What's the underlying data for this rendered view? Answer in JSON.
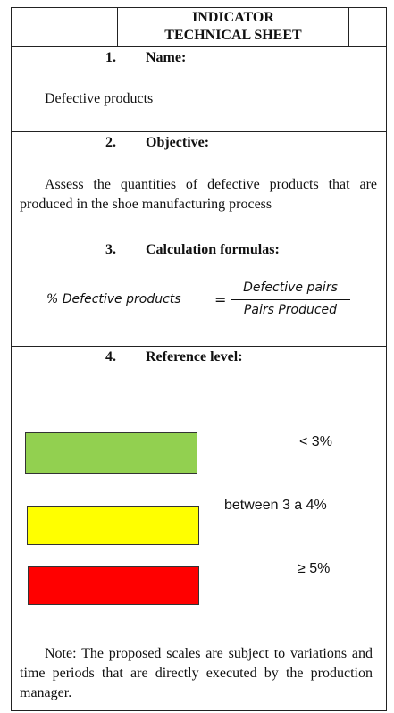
{
  "header": {
    "title": [
      "INDICATOR",
      "TECHNICAL SHEET"
    ]
  },
  "sections": [
    {
      "number": "1.",
      "heading": "Name:",
      "body": "Defective products"
    },
    {
      "number": "2.",
      "heading": "Objective:",
      "body": "Assess the quantities of defective products that are produced in the shoe manufacturing process"
    },
    {
      "number": "3.",
      "heading": "Calculation formulas:",
      "formula": {
        "lhs": "% Defective products",
        "operator": "=",
        "numerator": "Defective pairs",
        "denominator": "Pairs Produced"
      }
    },
    {
      "number": "4.",
      "heading": "Reference level:",
      "levels": [
        {
          "label": "< 3%",
          "color": "#92d050"
        },
        {
          "label": "between 3 a 4%",
          "color": "#ffff00"
        },
        {
          "label": "≥ 5%",
          "color": "#ff0000"
        }
      ],
      "note": "Note: The proposed scales are subject to variations and time periods that are directly executed by the production manager."
    }
  ]
}
